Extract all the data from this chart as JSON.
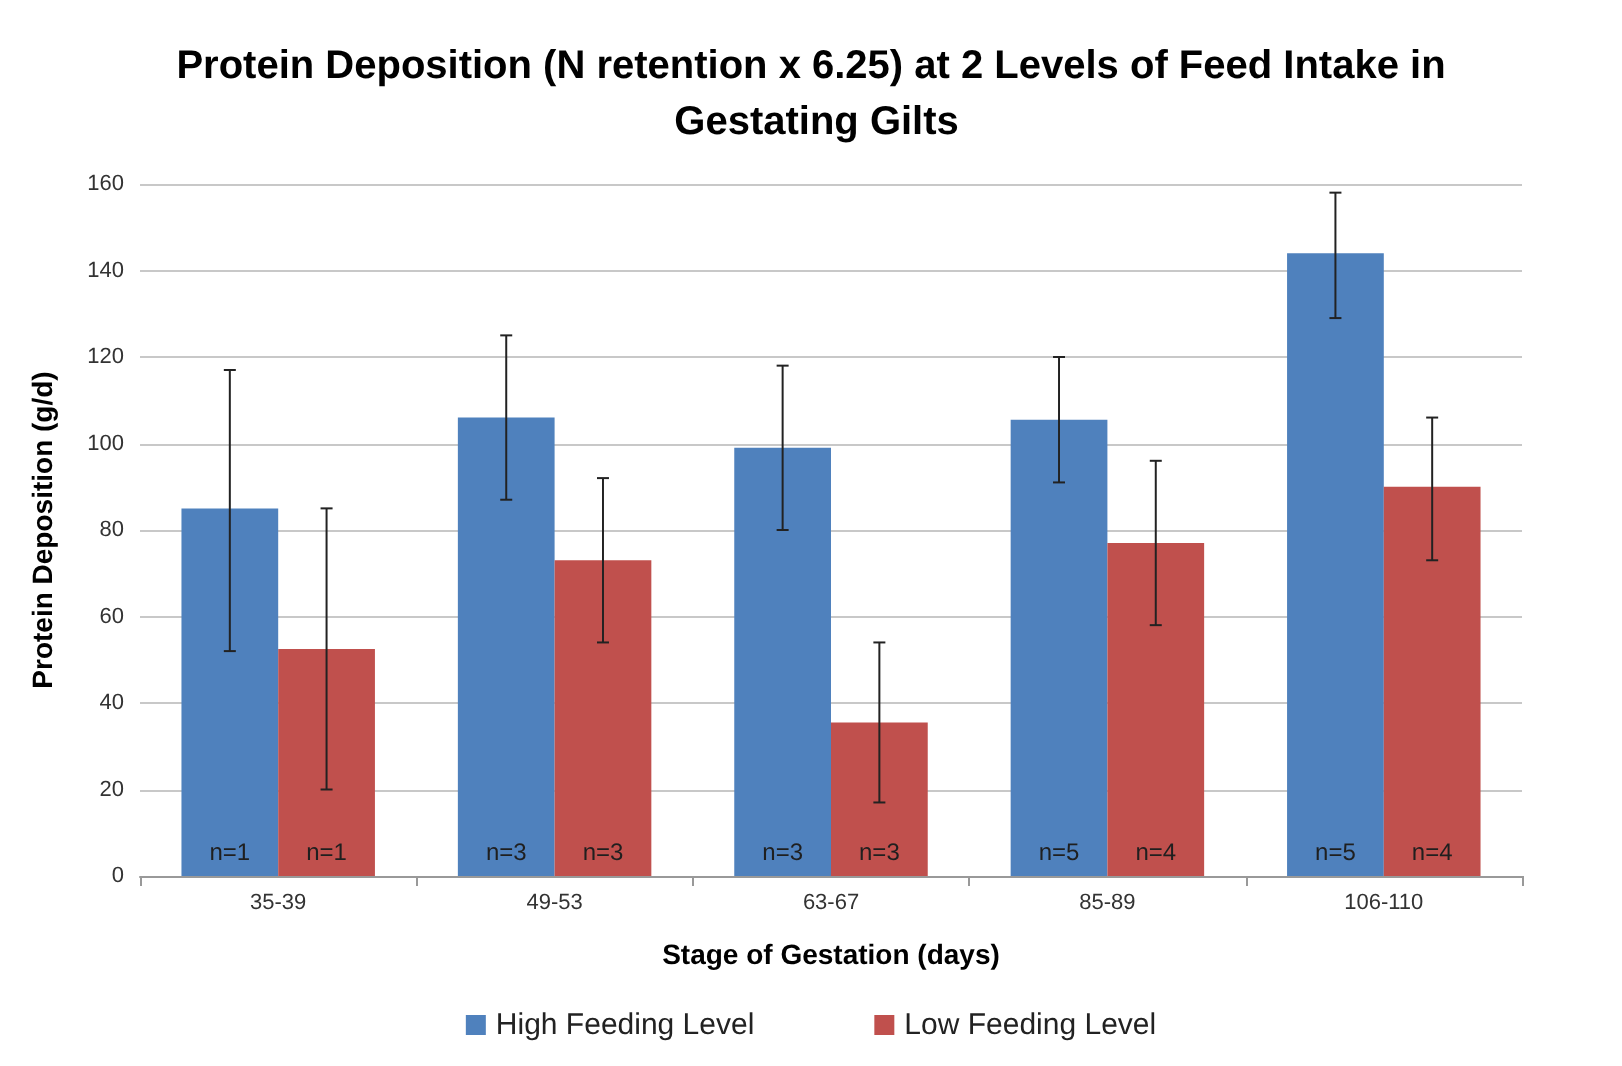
{
  "chart_data": {
    "type": "bar",
    "title": "Protein Deposition (N retention x 6.25) at 2 Levels of Feed Intake in Gestating Gilts",
    "xlabel": "Stage of Gestation (days)",
    "ylabel": "Protein Deposition (g/d)",
    "categories": [
      "35-39",
      "49-53",
      "63-67",
      "85-89",
      "106-110"
    ],
    "series": [
      {
        "name": "High Feeding Level",
        "color": "#4f81bd",
        "values": [
          85,
          106,
          99,
          105.5,
          144
        ],
        "errors": [
          [
            52,
            117
          ],
          [
            87,
            125
          ],
          [
            80,
            118
          ],
          [
            91,
            120
          ],
          [
            129,
            158
          ]
        ]
      },
      {
        "name": "Low Feeding Level",
        "color": "#c0504d",
        "values": [
          52.5,
          73,
          35.5,
          77,
          90
        ],
        "errors": [
          [
            20,
            85
          ],
          [
            54,
            92
          ],
          [
            17,
            54
          ],
          [
            58,
            96
          ],
          [
            73,
            106
          ]
        ]
      }
    ],
    "annotations": [
      "n=1",
      "n=1",
      "n=3",
      "n=3",
      "n=3",
      "n=3",
      "n=5",
      "n=4",
      "n=5",
      "n=4"
    ],
    "ylim": [
      0,
      160
    ],
    "yticks": [
      0,
      20,
      40,
      60,
      80,
      100,
      120,
      140,
      160
    ],
    "grid": "y",
    "legend": "bottom"
  }
}
